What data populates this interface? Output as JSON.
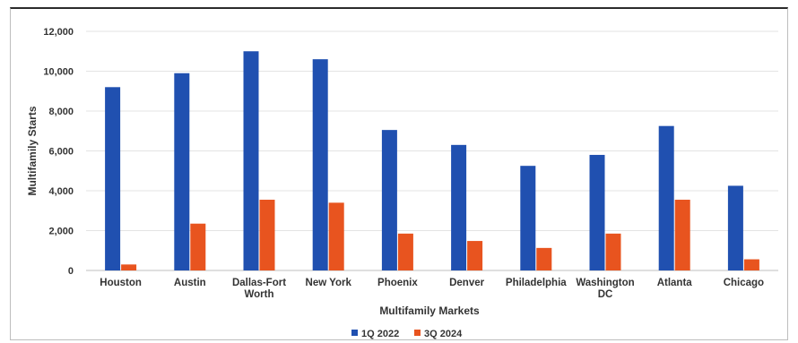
{
  "chart_data": {
    "type": "bar",
    "title": "",
    "xlabel": "Multifamily Markets",
    "ylabel": "Multifamily Starts",
    "ylim": [
      0,
      12000
    ],
    "yticks": [
      0,
      2000,
      4000,
      6000,
      8000,
      10000,
      12000
    ],
    "ytick_labels": [
      "0",
      "2,000",
      "4,000",
      "6,000",
      "8,000",
      "10,000",
      "12,000"
    ],
    "grid": true,
    "legend_position": "bottom",
    "categories": [
      [
        "Houston"
      ],
      [
        "Austin"
      ],
      [
        "Dallas-Fort",
        "Worth"
      ],
      [
        "New York"
      ],
      [
        "Phoenix"
      ],
      [
        "Denver"
      ],
      [
        "Philadelphia"
      ],
      [
        "Washington",
        "DC"
      ],
      [
        "Atlanta"
      ],
      [
        "Chicago"
      ]
    ],
    "series": [
      {
        "name": "1Q 2022",
        "color": "#2050b0",
        "values": [
          9200,
          9900,
          11000,
          10600,
          7050,
          6300,
          5250,
          5800,
          7250,
          4250
        ]
      },
      {
        "name": "3Q 2024",
        "color": "#e8541f",
        "values": [
          300,
          2350,
          3550,
          3400,
          1850,
          1480,
          1130,
          1850,
          3550,
          560
        ]
      }
    ]
  }
}
